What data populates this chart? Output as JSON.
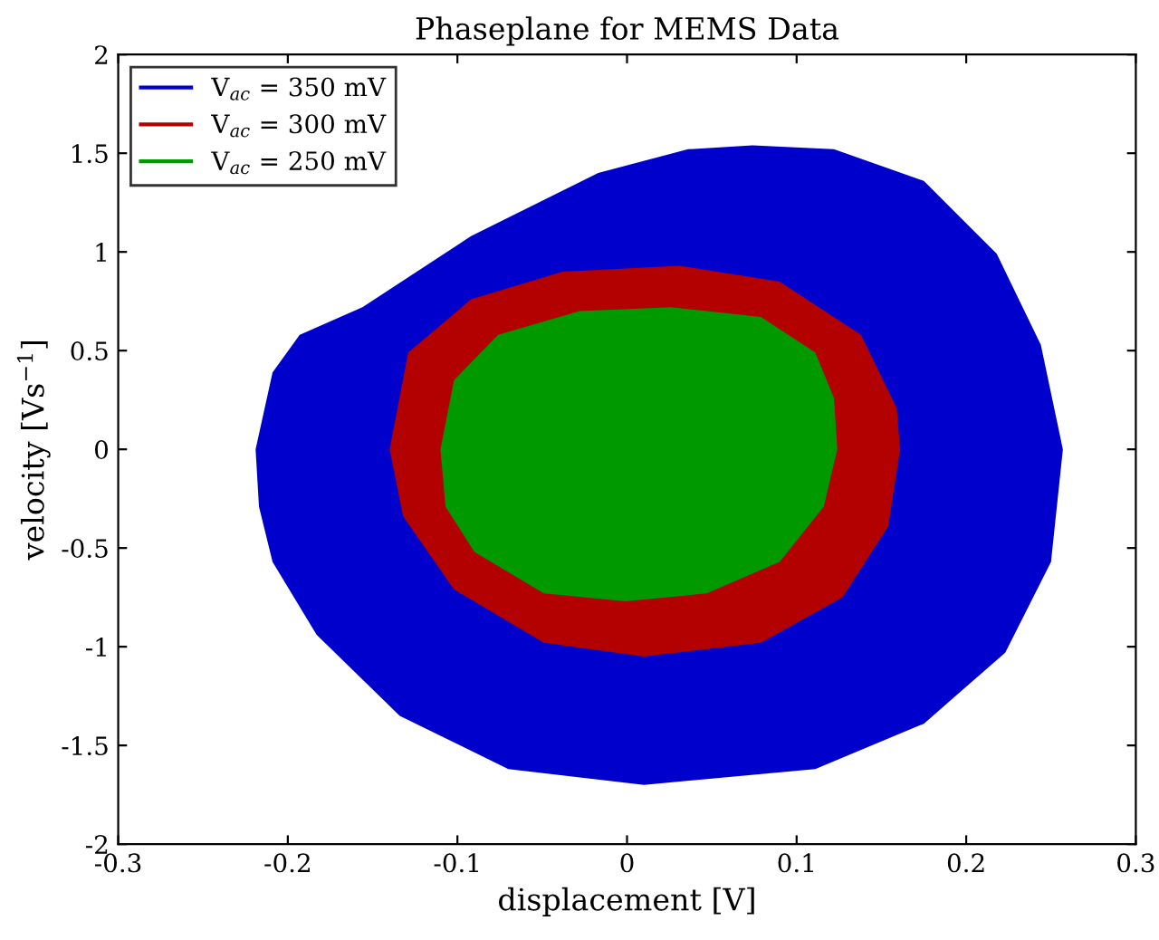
{
  "chart_data": {
    "type": "area",
    "title": "Phaseplane for MEMS Data",
    "xlabel": "displacement [V]",
    "ylabel": "velocity [Vs$^{−1}$]",
    "xlim": [
      -0.3,
      0.3
    ],
    "xticks": [
      {
        "value": -0.3,
        "label": "-0.3"
      },
      {
        "value": -0.2,
        "label": "-0.2"
      },
      {
        "value": -0.1,
        "label": "-0.1"
      },
      0,
      0.1,
      0.2,
      0.3
    ],
    "ylim": [
      -2,
      2
    ],
    "yticks": [
      {
        "value": -2,
        "label": "-2"
      },
      {
        "value": -1.5,
        "label": "-1.5"
      },
      {
        "value": -1,
        "label": "-1"
      },
      {
        "value": -0.5,
        "label": "-0.5"
      },
      0,
      0.5,
      1,
      1.5,
      2
    ],
    "grid": false,
    "legend": "top left",
    "series": [
      {
        "name": "V$_{ac}$ = 350 mV",
        "color": "#0000cc",
        "x": [
          -0.219,
          -0.209,
          -0.193,
          -0.156,
          -0.092,
          -0.017,
          0.036,
          0.074,
          0.122,
          0.175,
          0.218,
          0.244,
          0.257,
          0.25,
          0.223,
          0.175,
          0.111,
          0.01,
          -0.07,
          -0.134,
          -0.183,
          -0.209,
          -0.217
        ],
        "values": [
          0,
          0.39,
          0.58,
          0.72,
          1.08,
          1.4,
          1.52,
          1.54,
          1.52,
          1.36,
          0.99,
          0.53,
          0,
          -0.57,
          -1.03,
          -1.39,
          -1.62,
          -1.7,
          -1.62,
          -1.35,
          -0.94,
          -0.57,
          -0.29
        ]
      },
      {
        "name": "V$_{ac}$ = 300 mV",
        "color": "#b30000",
        "x": [
          -0.14,
          -0.129,
          -0.092,
          -0.038,
          0.031,
          0.09,
          0.138,
          0.159,
          0.161,
          0.154,
          0.127,
          0.079,
          0.01,
          -0.049,
          -0.102,
          -0.132
        ],
        "values": [
          0,
          0.49,
          0.76,
          0.9,
          0.93,
          0.85,
          0.58,
          0.21,
          0,
          -0.39,
          -0.75,
          -0.98,
          -1.05,
          -0.98,
          -0.71,
          -0.34
        ]
      },
      {
        "name": "V$_{ac}$ = 250 mV",
        "color": "#009900",
        "x": [
          -0.11,
          -0.102,
          -0.076,
          -0.028,
          0.026,
          0.079,
          0.111,
          0.122,
          0.124,
          0.116,
          0.09,
          0.047,
          -0.001,
          -0.049,
          -0.09,
          -0.107
        ],
        "values": [
          0,
          0.35,
          0.58,
          0.7,
          0.72,
          0.67,
          0.49,
          0.26,
          0,
          -0.29,
          -0.57,
          -0.73,
          -0.77,
          -0.73,
          -0.52,
          -0.29
        ]
      }
    ]
  }
}
